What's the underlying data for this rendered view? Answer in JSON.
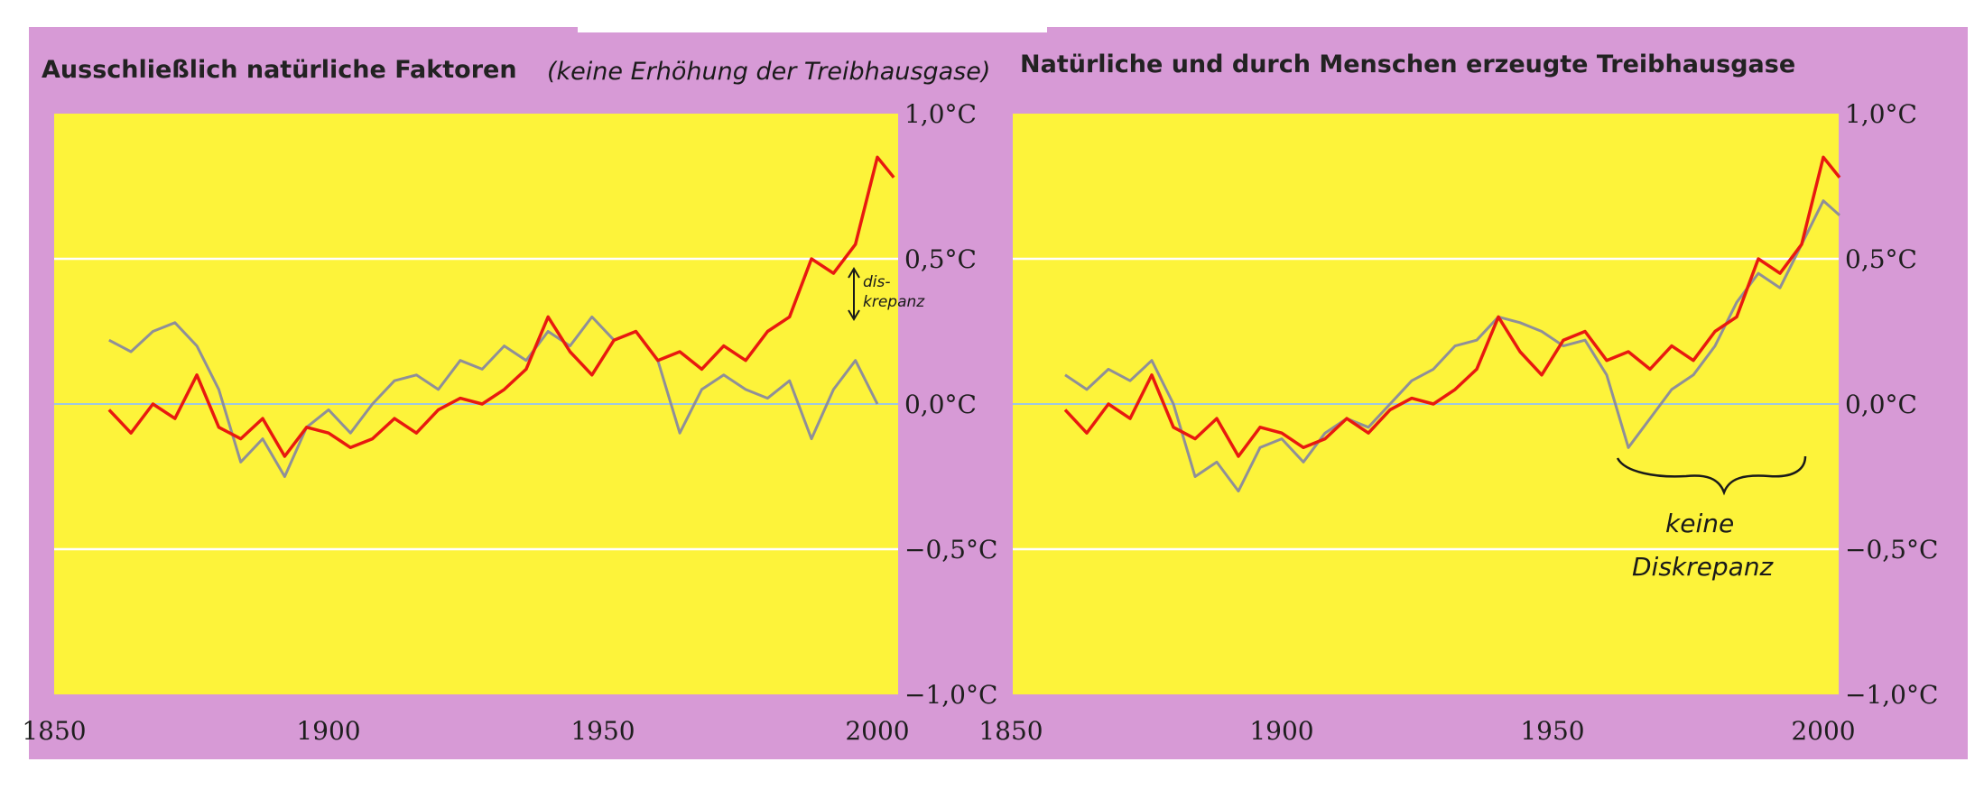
{
  "chart_data": [
    {
      "type": "line",
      "title": "Ausschließlich natürliche Faktoren",
      "handwritten_title_note": "(keine Erhöhung der Treibhausgase)",
      "xlabel": "",
      "ylabel": "",
      "xlim": [
        1850,
        2005
      ],
      "ylim": [
        -1.0,
        1.0
      ],
      "x_ticks": [
        "1850",
        "1900",
        "1950",
        "2000"
      ],
      "y_ticks": [
        "1,0°C",
        "0,5°C",
        "0,0°C",
        "−0,5°C",
        "−1,0°C"
      ],
      "grid": "horizontal",
      "colors": {
        "panel": "#fdf33a",
        "frame": "#d79ad6",
        "series_grey": "#8f8f98",
        "series_red": "#e8190f",
        "zero_line": "#9ec8e0"
      },
      "annotation": "dis- krepanz",
      "series": [
        {
          "color": "#8f8f98",
          "x": [
            1860,
            1864,
            1868,
            1872,
            1876,
            1880,
            1884,
            1888,
            1892,
            1896,
            1900,
            1904,
            1908,
            1912,
            1916,
            1920,
            1924,
            1928,
            1932,
            1936,
            1940,
            1944,
            1948,
            1952,
            1956,
            1960,
            1964,
            1968,
            1972,
            1976,
            1980,
            1984,
            1988,
            1992,
            1996,
            2000
          ],
          "y": [
            0.22,
            0.18,
            0.25,
            0.28,
            0.2,
            0.05,
            -0.2,
            -0.12,
            -0.25,
            -0.08,
            -0.02,
            -0.1,
            0.0,
            0.08,
            0.1,
            0.05,
            0.15,
            0.12,
            0.2,
            0.15,
            0.25,
            0.2,
            0.3,
            0.22,
            0.25,
            0.15,
            -0.1,
            0.05,
            0.1,
            0.05,
            0.02,
            0.08,
            -0.12,
            0.05,
            0.15,
            0.0
          ]
        },
        {
          "color": "#e8190f",
          "x": [
            1860,
            1864,
            1868,
            1872,
            1876,
            1880,
            1884,
            1888,
            1892,
            1896,
            1900,
            1904,
            1908,
            1912,
            1916,
            1920,
            1924,
            1928,
            1932,
            1936,
            1940,
            1944,
            1948,
            1952,
            1956,
            1960,
            1964,
            1968,
            1972,
            1976,
            1980,
            1984,
            1988,
            1992,
            1996,
            2000,
            2003
          ],
          "y": [
            -0.02,
            -0.1,
            0.0,
            -0.05,
            0.1,
            -0.08,
            -0.12,
            -0.05,
            -0.18,
            -0.08,
            -0.1,
            -0.15,
            -0.12,
            -0.05,
            -0.1,
            -0.02,
            0.02,
            0.0,
            0.05,
            0.12,
            0.3,
            0.18,
            0.1,
            0.22,
            0.25,
            0.15,
            0.18,
            0.12,
            0.2,
            0.15,
            0.25,
            0.3,
            0.5,
            0.45,
            0.55,
            0.85,
            0.78
          ]
        }
      ]
    },
    {
      "type": "line",
      "title": "Natürliche und durch Menschen erzeugte Treibhausgase",
      "xlabel": "",
      "ylabel": "",
      "xlim": [
        1850,
        2005
      ],
      "ylim": [
        -1.0,
        1.0
      ],
      "x_ticks": [
        "1850",
        "1900",
        "1950",
        "2000"
      ],
      "y_ticks": [
        "1,0°C",
        "0,5°C",
        "0,0°C",
        "−0,5°C",
        "−1,0°C"
      ],
      "grid": "horizontal",
      "colors": {
        "panel": "#fdf33a",
        "frame": "#d79ad6",
        "series_grey": "#8f8f98",
        "series_red": "#e8190f",
        "zero_line": "#9ec8e0"
      },
      "annotation": "keine Diskrepanz",
      "series": [
        {
          "color": "#8f8f98",
          "x": [
            1860,
            1864,
            1868,
            1872,
            1876,
            1880,
            1884,
            1888,
            1892,
            1896,
            1900,
            1904,
            1908,
            1912,
            1916,
            1920,
            1924,
            1928,
            1932,
            1936,
            1940,
            1944,
            1948,
            1952,
            1956,
            1960,
            1964,
            1968,
            1972,
            1976,
            1980,
            1984,
            1988,
            1992,
            1996,
            2000,
            2003
          ],
          "y": [
            0.1,
            0.05,
            0.12,
            0.08,
            0.15,
            0.0,
            -0.25,
            -0.2,
            -0.3,
            -0.15,
            -0.12,
            -0.2,
            -0.1,
            -0.05,
            -0.08,
            0.0,
            0.08,
            0.12,
            0.2,
            0.22,
            0.3,
            0.28,
            0.25,
            0.2,
            0.22,
            0.1,
            -0.15,
            -0.05,
            0.05,
            0.1,
            0.2,
            0.35,
            0.45,
            0.4,
            0.55,
            0.7,
            0.65
          ]
        },
        {
          "color": "#e8190f",
          "x": [
            1860,
            1864,
            1868,
            1872,
            1876,
            1880,
            1884,
            1888,
            1892,
            1896,
            1900,
            1904,
            1908,
            1912,
            1916,
            1920,
            1924,
            1928,
            1932,
            1936,
            1940,
            1944,
            1948,
            1952,
            1956,
            1960,
            1964,
            1968,
            1972,
            1976,
            1980,
            1984,
            1988,
            1992,
            1996,
            2000,
            2003
          ],
          "y": [
            -0.02,
            -0.1,
            0.0,
            -0.05,
            0.1,
            -0.08,
            -0.12,
            -0.05,
            -0.18,
            -0.08,
            -0.1,
            -0.15,
            -0.12,
            -0.05,
            -0.1,
            -0.02,
            0.02,
            0.0,
            0.05,
            0.12,
            0.3,
            0.18,
            0.1,
            0.22,
            0.25,
            0.15,
            0.18,
            0.12,
            0.2,
            0.15,
            0.25,
            0.3,
            0.5,
            0.45,
            0.55,
            0.85,
            0.78
          ]
        }
      ]
    }
  ]
}
